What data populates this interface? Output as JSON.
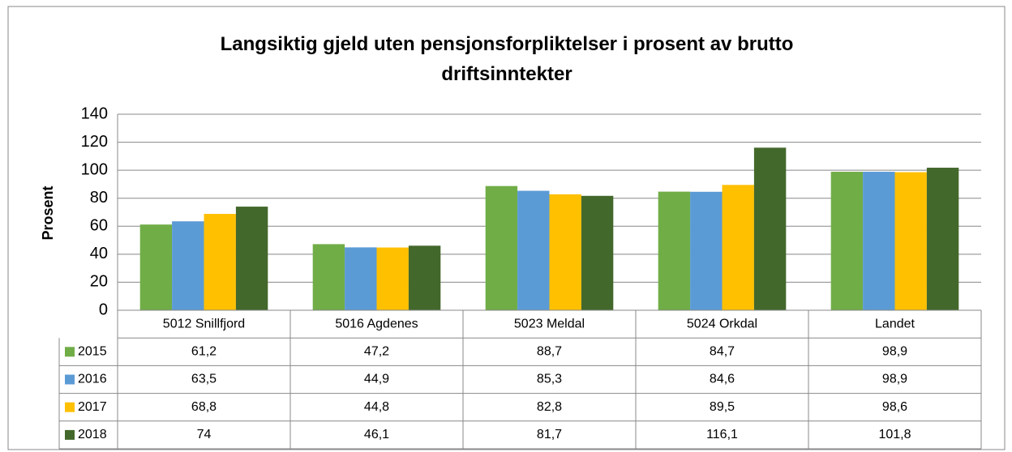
{
  "chart_data": {
    "type": "bar",
    "title": "Langsiktig gjeld uten pensjonsforpliktelser i prosent av brutto driftsinntekter",
    "y_label": "Prosent",
    "categories": [
      "5012 Snillfjord",
      "5016 Agdenes",
      "5023 Meldal",
      "5024 Orkdal",
      "Landet"
    ],
    "series": [
      {
        "name": "2015",
        "color": "#70ad47",
        "values": [
          61.2,
          47.2,
          88.7,
          84.7,
          98.9
        ],
        "value_labels": [
          "61,2",
          "47,2",
          "88,7",
          "84,7",
          "98,9"
        ]
      },
      {
        "name": "2016",
        "color": "#5b9bd5",
        "values": [
          63.5,
          44.9,
          85.3,
          84.6,
          98.9
        ],
        "value_labels": [
          "63,5",
          "44,9",
          "85,3",
          "84,6",
          "98,9"
        ]
      },
      {
        "name": "2017",
        "color": "#ffc000",
        "values": [
          68.8,
          44.8,
          82.8,
          89.5,
          98.6
        ],
        "value_labels": [
          "68,8",
          "44,8",
          "82,8",
          "89,5",
          "98,6"
        ]
      },
      {
        "name": "2018",
        "color": "#43682b",
        "values": [
          74,
          46.1,
          81.7,
          116.1,
          101.8
        ],
        "value_labels": [
          "74",
          "46,1",
          "81,7",
          "116,1",
          "101,8"
        ]
      }
    ],
    "ylim": [
      0,
      140
    ],
    "yticks": [
      0,
      20,
      40,
      60,
      80,
      100,
      120,
      140
    ],
    "grid": true
  }
}
